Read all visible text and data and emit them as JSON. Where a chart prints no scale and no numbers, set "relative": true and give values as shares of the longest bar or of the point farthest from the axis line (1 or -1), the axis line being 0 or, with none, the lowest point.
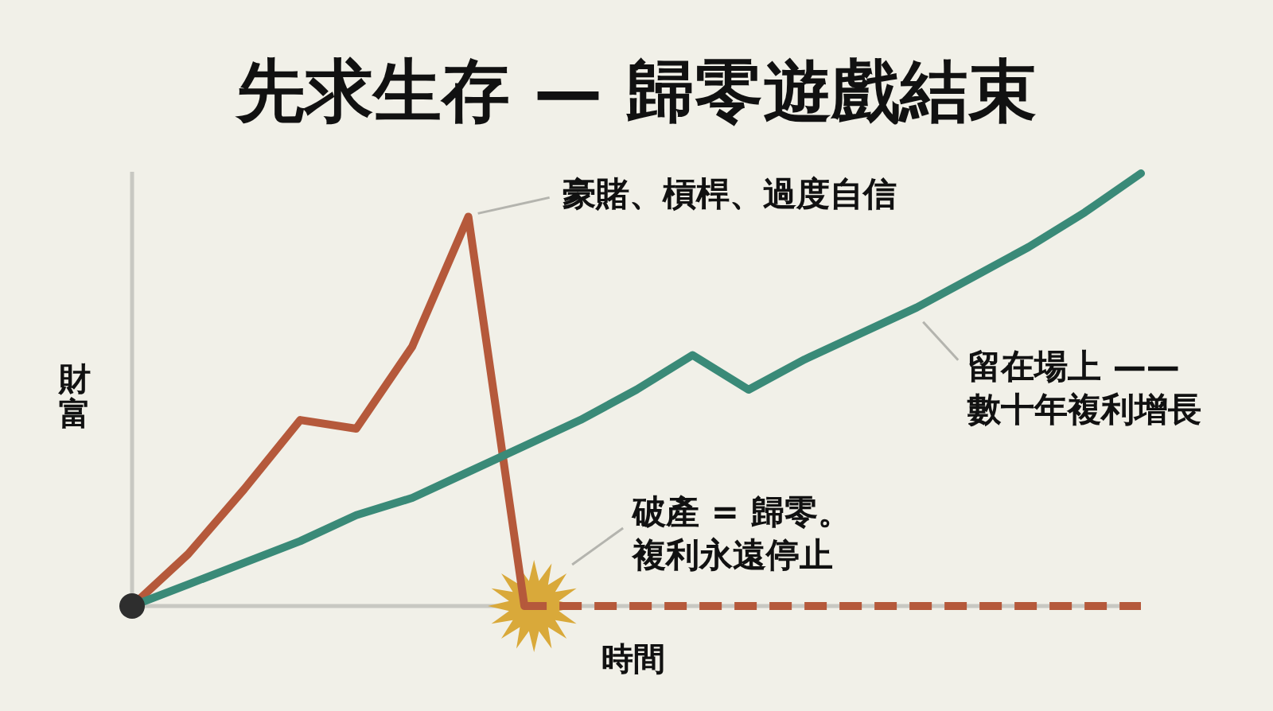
{
  "chart_data": {
    "type": "line",
    "relative": true,
    "title": "先求生存 — 歸零遊戲結束",
    "xlabel": "時間",
    "ylabel": "財富",
    "categories": [
      null,
      null,
      null,
      null,
      null,
      null,
      null,
      null,
      null,
      null,
      null,
      null,
      null,
      null,
      null,
      null,
      null,
      null,
      null
    ],
    "series": [
      {
        "color": "#b5593b",
        "values": [
          0,
          0.12,
          0.27,
          0.43,
          0.41,
          0.6,
          0.9,
          0,
          null,
          null,
          null,
          null,
          null,
          null,
          null,
          null,
          null,
          null,
          null
        ]
      },
      {
        "color": "#b5593b",
        "line_style": "dashed",
        "values": [
          null,
          null,
          null,
          null,
          null,
          null,
          null,
          0,
          0,
          0,
          0,
          0,
          0,
          0,
          0,
          0,
          0,
          0,
          0
        ]
      },
      {
        "color": "#3a8a78",
        "values": [
          0,
          0.05,
          0.1,
          0.15,
          0.21,
          0.25,
          0.31,
          0.37,
          0.43,
          0.5,
          0.58,
          0.5,
          0.57,
          0.63,
          0.69,
          0.76,
          0.83,
          0.91,
          1.0
        ]
      }
    ],
    "annotations": [
      "豪賭、槓桿、過度自信",
      "破產 = 歸零。複利永遠停止",
      "留在場上 ——\n數十年複利增長"
    ]
  }
}
